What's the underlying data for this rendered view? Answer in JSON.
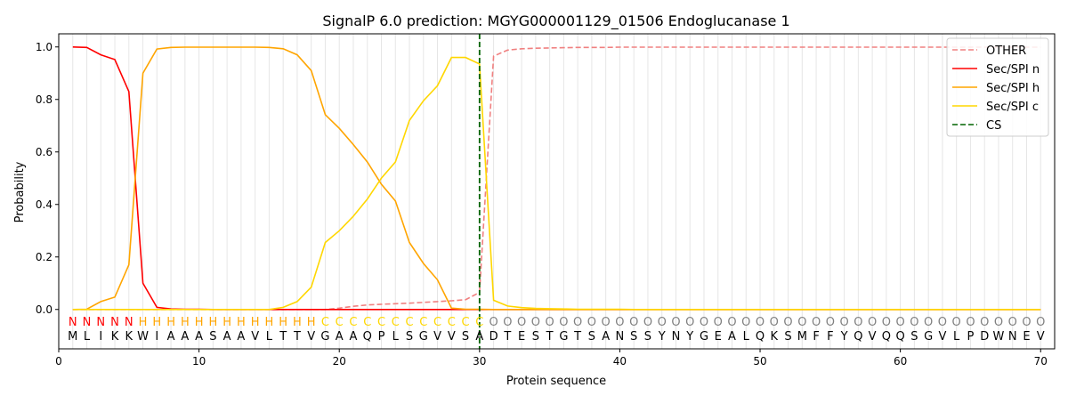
{
  "chart_data": {
    "type": "line",
    "title": "SignalP 6.0 prediction: MGYG000001129_01506 Endoglucanase 1",
    "xlabel": "Protein sequence",
    "ylabel": "Probability",
    "xlim": [
      0,
      71
    ],
    "ylim": [
      -0.15,
      1.05
    ],
    "x_ticks": [
      0,
      10,
      20,
      30,
      40,
      50,
      60,
      70
    ],
    "y_ticks": [
      0.0,
      0.2,
      0.4,
      0.6,
      0.8,
      1.0
    ],
    "x_tick_labels": [
      "0",
      "10",
      "20",
      "30",
      "40",
      "50",
      "60",
      "70"
    ],
    "y_tick_labels": [
      "0.0",
      "0.2",
      "0.4",
      "0.6",
      "0.8",
      "1.0"
    ],
    "grid": "vertical lines at each residue",
    "legend_position": "top-right",
    "colors": {
      "other": "#f08080",
      "sec_n": "#ff0000",
      "sec_h": "#ffa500",
      "sec_c": "#ffd700",
      "cs": "#006400",
      "region_n": "#ff0000",
      "region_h": "#ffa500",
      "region_c": "#ffd700",
      "region_o": "#808080"
    },
    "sequence": [
      "M",
      "L",
      "I",
      "K",
      "K",
      "W",
      "I",
      "A",
      "A",
      "A",
      "S",
      "A",
      "A",
      "V",
      "L",
      "T",
      "T",
      "V",
      "G",
      "A",
      "A",
      "Q",
      "P",
      "L",
      "S",
      "G",
      "V",
      "V",
      "S",
      "A",
      "D",
      "T",
      "E",
      "S",
      "T",
      "G",
      "T",
      "S",
      "A",
      "N",
      "S",
      "S",
      "Y",
      "N",
      "Y",
      "G",
      "E",
      "A",
      "L",
      "Q",
      "K",
      "S",
      "M",
      "F",
      "F",
      "Y",
      "Q",
      "V",
      "Q",
      "Q",
      "S",
      "G",
      "V",
      "L",
      "P",
      "D",
      "W",
      "N",
      "E",
      "V"
    ],
    "region_labels": [
      "N",
      "N",
      "N",
      "N",
      "N",
      "H",
      "H",
      "H",
      "H",
      "H",
      "H",
      "H",
      "H",
      "H",
      "H",
      "H",
      "H",
      "H",
      "C",
      "C",
      "C",
      "C",
      "C",
      "C",
      "C",
      "C",
      "C",
      "C",
      "C",
      "C",
      "O",
      "O",
      "O",
      "O",
      "O",
      "O",
      "O",
      "O",
      "O",
      "O",
      "O",
      "O",
      "O",
      "O",
      "O",
      "O",
      "O",
      "O",
      "O",
      "O",
      "O",
      "O",
      "O",
      "O",
      "O",
      "O",
      "O",
      "O",
      "O",
      "O",
      "O",
      "O",
      "O",
      "O",
      "O",
      "O",
      "O",
      "O",
      "O",
      "O"
    ],
    "series": [
      {
        "name": "OTHER",
        "style": "dashed",
        "x": [
          1,
          2,
          3,
          4,
          5,
          6,
          7,
          8,
          9,
          10,
          11,
          12,
          13,
          14,
          15,
          16,
          17,
          18,
          19,
          20,
          21,
          22,
          23,
          24,
          25,
          26,
          27,
          28,
          29,
          30,
          31,
          32,
          33,
          34,
          35,
          36,
          37,
          38,
          39,
          40,
          41,
          42,
          43,
          44,
          45,
          46,
          47,
          48,
          49,
          50,
          51,
          52,
          53,
          54,
          55,
          56,
          57,
          58,
          59,
          60,
          61,
          62,
          63,
          64,
          65,
          66,
          67,
          68,
          69,
          70
        ],
        "values": [
          0,
          0,
          0,
          0,
          0,
          0,
          0,
          0,
          0,
          0,
          0,
          0,
          0,
          0,
          0,
          0,
          0,
          0,
          0,
          0.005,
          0.012,
          0.017,
          0.02,
          0.022,
          0.024,
          0.027,
          0.03,
          0.033,
          0.037,
          0.065,
          0.965,
          0.988,
          0.993,
          0.995,
          0.996,
          0.997,
          0.998,
          0.998,
          0.998,
          0.999,
          0.999,
          0.999,
          0.999,
          0.999,
          0.999,
          0.999,
          0.999,
          0.999,
          0.999,
          0.999,
          0.999,
          0.999,
          0.999,
          0.999,
          0.999,
          0.999,
          0.999,
          0.999,
          0.999,
          0.999,
          0.999,
          0.999,
          0.999,
          0.999,
          0.999,
          0.999,
          0.999,
          0.999,
          0.999,
          0.999
        ]
      },
      {
        "name": "Sec/SPI n",
        "style": "solid",
        "x": [
          1,
          2,
          3,
          4,
          5,
          6,
          7,
          8,
          9,
          10,
          11,
          12,
          13,
          14,
          15,
          16,
          17,
          18,
          19,
          20,
          21,
          22,
          23,
          24,
          25,
          26,
          27,
          28,
          29,
          30,
          31,
          32,
          33,
          34,
          35,
          36,
          37,
          38,
          39,
          40,
          41,
          42,
          43,
          44,
          45,
          46,
          47,
          48,
          49,
          50,
          51,
          52,
          53,
          54,
          55,
          56,
          57,
          58,
          59,
          60,
          61,
          62,
          63,
          64,
          65,
          66,
          67,
          68,
          69,
          70
        ],
        "values": [
          1.0,
          0.998,
          0.97,
          0.952,
          0.83,
          0.1,
          0.008,
          0.002,
          0.001,
          0.001,
          0,
          0,
          0,
          0,
          0,
          0,
          0,
          0,
          0,
          0,
          0,
          0,
          0,
          0,
          0,
          0,
          0,
          0,
          0,
          0,
          0,
          0,
          0,
          0,
          0,
          0,
          0,
          0,
          0,
          0,
          0,
          0,
          0,
          0,
          0,
          0,
          0,
          0,
          0,
          0,
          0,
          0,
          0,
          0,
          0,
          0,
          0,
          0,
          0,
          0,
          0,
          0,
          0,
          0,
          0,
          0,
          0,
          0,
          0,
          0
        ]
      },
      {
        "name": "Sec/SPI h",
        "style": "solid",
        "x": [
          1,
          2,
          3,
          4,
          5,
          6,
          7,
          8,
          9,
          10,
          11,
          12,
          13,
          14,
          15,
          16,
          17,
          18,
          19,
          20,
          21,
          22,
          23,
          24,
          25,
          26,
          27,
          28,
          29,
          30,
          31,
          32,
          33,
          34,
          35,
          36,
          37,
          38,
          39,
          40,
          41,
          42,
          43,
          44,
          45,
          46,
          47,
          48,
          49,
          50,
          51,
          52,
          53,
          54,
          55,
          56,
          57,
          58,
          59,
          60,
          61,
          62,
          63,
          64,
          65,
          66,
          67,
          68,
          69,
          70
        ],
        "values": [
          0,
          0.001,
          0.03,
          0.047,
          0.17,
          0.9,
          0.992,
          0.998,
          0.999,
          0.999,
          0.999,
          0.999,
          0.999,
          0.999,
          0.998,
          0.993,
          0.97,
          0.91,
          0.742,
          0.69,
          0.628,
          0.562,
          0.477,
          0.413,
          0.255,
          0.175,
          0.113,
          0.005,
          0.001,
          0.001,
          0,
          0,
          0,
          0,
          0,
          0,
          0,
          0,
          0,
          0,
          0,
          0,
          0,
          0,
          0,
          0,
          0,
          0,
          0,
          0,
          0,
          0,
          0,
          0,
          0,
          0,
          0,
          0,
          0,
          0,
          0,
          0,
          0,
          0,
          0,
          0,
          0,
          0,
          0,
          0
        ]
      },
      {
        "name": "Sec/SPI c",
        "style": "solid",
        "x": [
          1,
          2,
          3,
          4,
          5,
          6,
          7,
          8,
          9,
          10,
          11,
          12,
          13,
          14,
          15,
          16,
          17,
          18,
          19,
          20,
          21,
          22,
          23,
          24,
          25,
          26,
          27,
          28,
          29,
          30,
          31,
          32,
          33,
          34,
          35,
          36,
          37,
          38,
          39,
          40,
          41,
          42,
          43,
          44,
          45,
          46,
          47,
          48,
          49,
          50,
          51,
          52,
          53,
          54,
          55,
          56,
          57,
          58,
          59,
          60,
          61,
          62,
          63,
          64,
          65,
          66,
          67,
          68,
          69,
          70
        ],
        "values": [
          0,
          0,
          0,
          0,
          0,
          0,
          0,
          0,
          0,
          0,
          0,
          0,
          0,
          0,
          0,
          0.008,
          0.03,
          0.085,
          0.255,
          0.3,
          0.355,
          0.42,
          0.5,
          0.562,
          0.72,
          0.795,
          0.852,
          0.96,
          0.96,
          0.935,
          0.035,
          0.013,
          0.007,
          0.004,
          0.003,
          0.002,
          0.001,
          0.001,
          0.001,
          0.001,
          0,
          0,
          0,
          0,
          0,
          0,
          0,
          0,
          0,
          0,
          0,
          0,
          0,
          0,
          0,
          0,
          0,
          0,
          0,
          0,
          0,
          0,
          0,
          0,
          0,
          0,
          0,
          0,
          0,
          0
        ]
      }
    ],
    "cs_line": {
      "name": "CS",
      "x": 30,
      "style": "dashed"
    },
    "legend": [
      "OTHER",
      "Sec/SPI n",
      "Sec/SPI h",
      "Sec/SPI c",
      "CS"
    ]
  }
}
